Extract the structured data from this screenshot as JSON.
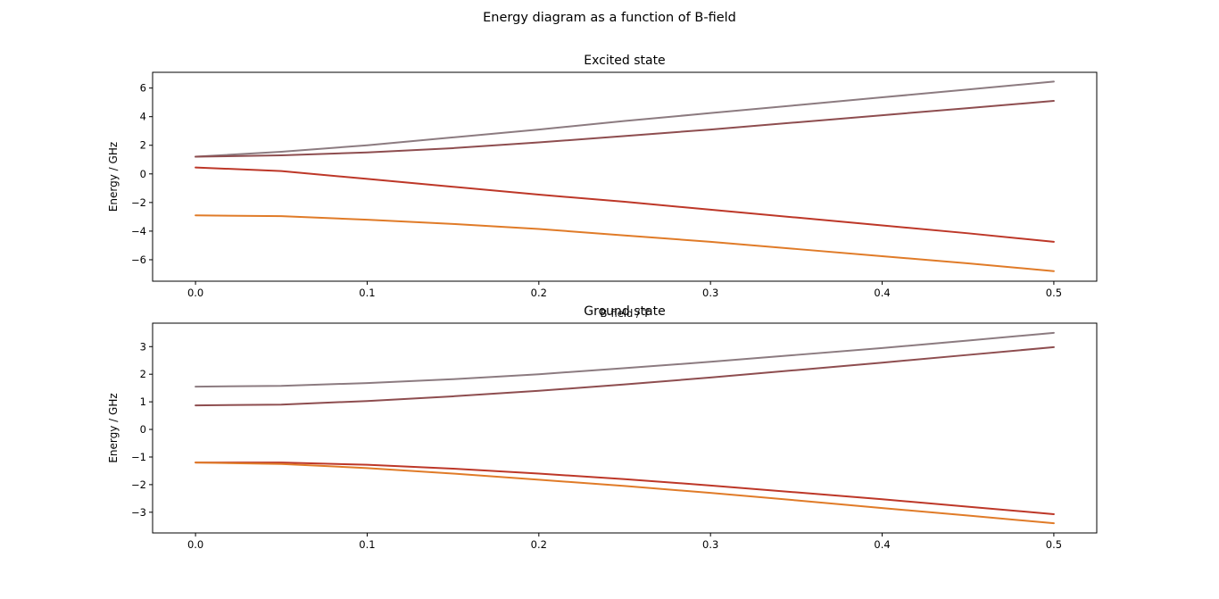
{
  "figure": {
    "title": "Energy diagram as a function of B-field"
  },
  "chart_data": [
    {
      "type": "line",
      "title": "Excited state",
      "xlabel": "B-field / T",
      "ylabel": "Energy / GHz",
      "xlim": [
        -0.025,
        0.525
      ],
      "ylim": [
        -7.5,
        7.1
      ],
      "xticks": [
        0.0,
        0.1,
        0.2,
        0.3,
        0.4,
        0.5
      ],
      "xtick_labels": [
        "0.0",
        "0.1",
        "0.2",
        "0.3",
        "0.4",
        "0.5"
      ],
      "yticks": [
        -6,
        -4,
        -2,
        0,
        2,
        4,
        6
      ],
      "ytick_labels": [
        "−6",
        "−4",
        "−2",
        "0",
        "2",
        "4",
        "6"
      ],
      "grid": false,
      "x": [
        0.0,
        0.05,
        0.1,
        0.15,
        0.2,
        0.25,
        0.3,
        0.35,
        0.4,
        0.45,
        0.5
      ],
      "series": [
        {
          "color": "#8c7b80",
          "values": [
            1.2,
            1.55,
            2.0,
            2.55,
            3.1,
            3.7,
            4.25,
            4.8,
            5.35,
            5.9,
            6.45
          ]
        },
        {
          "color": "#8e4d4f",
          "values": [
            1.2,
            1.3,
            1.5,
            1.8,
            2.2,
            2.65,
            3.1,
            3.6,
            4.1,
            4.6,
            5.1
          ]
        },
        {
          "color": "#bd3728",
          "values": [
            0.45,
            0.2,
            -0.35,
            -0.9,
            -1.45,
            -1.95,
            -2.5,
            -3.05,
            -3.6,
            -4.15,
            -4.75
          ]
        },
        {
          "color": "#e07b28",
          "values": [
            -2.9,
            -2.95,
            -3.2,
            -3.5,
            -3.85,
            -4.3,
            -4.75,
            -5.25,
            -5.75,
            -6.25,
            -6.8
          ]
        }
      ]
    },
    {
      "type": "line",
      "title": "Ground state",
      "xlabel": "",
      "ylabel": "Energy / GHz",
      "xlim": [
        -0.025,
        0.525
      ],
      "ylim": [
        -3.75,
        3.85
      ],
      "xticks": [
        0.0,
        0.1,
        0.2,
        0.3,
        0.4,
        0.5
      ],
      "xtick_labels": [
        "0.0",
        "0.1",
        "0.2",
        "0.3",
        "0.4",
        "0.5"
      ],
      "yticks": [
        -3,
        -2,
        -1,
        0,
        1,
        2,
        3
      ],
      "ytick_labels": [
        "−3",
        "−2",
        "−1",
        "0",
        "1",
        "2",
        "3"
      ],
      "grid": false,
      "x": [
        0.0,
        0.05,
        0.1,
        0.15,
        0.2,
        0.25,
        0.3,
        0.35,
        0.4,
        0.45,
        0.5
      ],
      "series": [
        {
          "color": "#8c7b80",
          "values": [
            1.55,
            1.58,
            1.68,
            1.82,
            2.0,
            2.22,
            2.45,
            2.7,
            2.95,
            3.22,
            3.5
          ]
        },
        {
          "color": "#8e4d4f",
          "values": [
            0.87,
            0.9,
            1.03,
            1.2,
            1.4,
            1.63,
            1.88,
            2.15,
            2.42,
            2.7,
            2.98
          ]
        },
        {
          "color": "#bd3728",
          "values": [
            -1.2,
            -1.2,
            -1.28,
            -1.42,
            -1.6,
            -1.8,
            -2.03,
            -2.28,
            -2.53,
            -2.8,
            -3.07
          ]
        },
        {
          "color": "#e07b28",
          "values": [
            -1.2,
            -1.25,
            -1.4,
            -1.6,
            -1.82,
            -2.05,
            -2.3,
            -2.57,
            -2.85,
            -3.12,
            -3.4
          ]
        }
      ]
    }
  ]
}
